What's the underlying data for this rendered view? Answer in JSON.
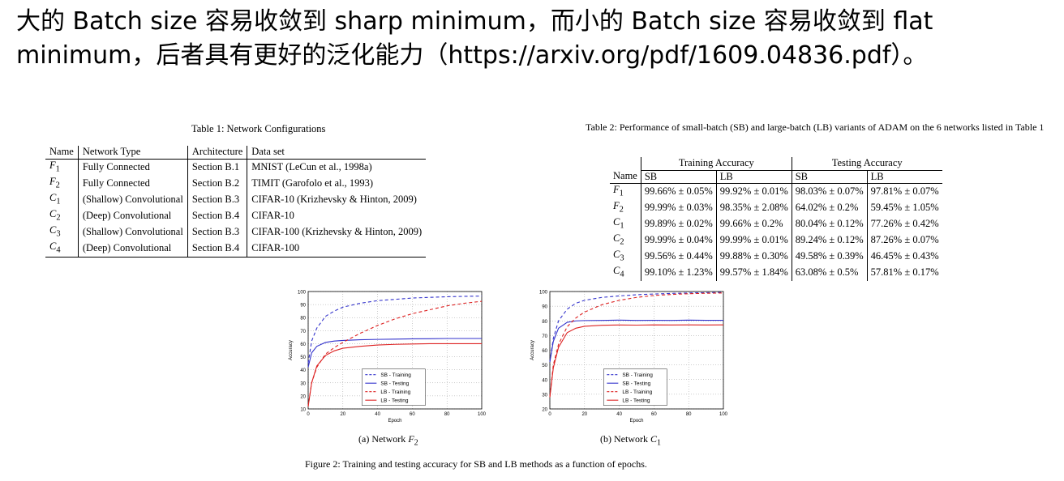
{
  "headline": {
    "line1": "大的 Batch size 容易收敛到 sharp minimum，而小的 Batch size 容易收敛到 flat",
    "line2": "minimum，后者具有更好的泛化能力（https://arxiv.org/pdf/1609.04836.pdf）。"
  },
  "table1": {
    "caption": "Table 1: Network Configurations",
    "headers": [
      "Name",
      "Network Type",
      "Architecture",
      "Data set"
    ],
    "rows": [
      [
        "F1",
        "Fully Connected",
        "Section B.1",
        "MNIST (LeCun et al., 1998a)"
      ],
      [
        "F2",
        "Fully Connected",
        "Section B.2",
        "TIMIT (Garofolo et al., 1993)"
      ],
      [
        "C1",
        "(Shallow) Convolutional",
        "Section B.3",
        "CIFAR-10 (Krizhevsky & Hinton, 2009)"
      ],
      [
        "C2",
        "(Deep) Convolutional",
        "Section B.4",
        "CIFAR-10"
      ],
      [
        "C3",
        "(Shallow) Convolutional",
        "Section B.3",
        "CIFAR-100 (Krizhevsky & Hinton, 2009)"
      ],
      [
        "C4",
        "(Deep) Convolutional",
        "Section B.4",
        "CIFAR-100"
      ]
    ]
  },
  "table2": {
    "caption": "Table 2: Performance of small-batch (SB) and large-batch (LB) variants of ADAM on the 6 networks listed in Table 1",
    "group_training": "Training Accuracy",
    "group_testing": "Testing Accuracy",
    "col_name": "Name",
    "col_sb": "SB",
    "col_lb": "LB",
    "rows": [
      [
        "F1",
        "99.66% ± 0.05%",
        "99.92% ± 0.01%",
        "98.03% ± 0.07%",
        "97.81% ± 0.07%"
      ],
      [
        "F2",
        "99.99% ± 0.03%",
        "98.35% ± 2.08%",
        "64.02% ± 0.2%",
        "59.45% ± 1.05%"
      ],
      [
        "C1",
        "99.89% ± 0.02%",
        "99.66% ± 0.2%",
        "80.04% ± 0.12%",
        "77.26% ± 0.42%"
      ],
      [
        "C2",
        "99.99% ± 0.04%",
        "99.99% ± 0.01%",
        "89.24% ± 0.12%",
        "87.26% ± 0.07%"
      ],
      [
        "C3",
        "99.56% ± 0.44%",
        "99.88% ± 0.30%",
        "49.58% ± 0.39%",
        "46.45% ± 0.43%"
      ],
      [
        "C4",
        "99.10% ± 1.23%",
        "99.57% ± 1.84%",
        "63.08% ± 0.5%",
        "57.81% ± 0.17%"
      ]
    ]
  },
  "figure": {
    "caption": "Figure 2: Training and testing accuracy for SB and LB methods as a function of epochs.",
    "subcaption_a": "(a) Network ",
    "subcaption_a_math": "F",
    "subcaption_a_sub": "2",
    "subcaption_b": "(b) Network ",
    "subcaption_b_math": "C",
    "subcaption_b_sub": "1"
  },
  "chart_data": [
    {
      "type": "line",
      "xlabel": "Epoch",
      "ylabel": "Accuracy",
      "xlim": [
        0,
        100
      ],
      "ylim": [
        10,
        100
      ],
      "xticks": [
        0,
        20,
        40,
        60,
        80,
        100
      ],
      "yticks": [
        10,
        20,
        30,
        40,
        50,
        60,
        70,
        80,
        90,
        100
      ],
      "grid": true,
      "legend_position": "lower-center",
      "series": [
        {
          "name": "SB - Training",
          "color": "#3333cc",
          "dash": true,
          "x": [
            0,
            2,
            5,
            10,
            15,
            20,
            30,
            40,
            50,
            60,
            70,
            80,
            90,
            100
          ],
          "y": [
            45,
            62,
            72,
            81,
            85,
            88,
            91,
            93,
            94,
            95,
            95.5,
            96,
            96.3,
            96.5
          ]
        },
        {
          "name": "SB - Testing",
          "color": "#3333cc",
          "dash": false,
          "x": [
            0,
            2,
            5,
            10,
            15,
            20,
            30,
            40,
            50,
            60,
            70,
            80,
            90,
            100
          ],
          "y": [
            42,
            53,
            58,
            61,
            62,
            62.5,
            63,
            63.3,
            63.5,
            63.7,
            63.8,
            64,
            64,
            64
          ]
        },
        {
          "name": "LB - Training",
          "color": "#dd2222",
          "dash": true,
          "x": [
            0,
            2,
            5,
            10,
            15,
            20,
            30,
            40,
            50,
            60,
            70,
            80,
            90,
            100
          ],
          "y": [
            12,
            30,
            42,
            52,
            57,
            61,
            68,
            74,
            79,
            83,
            86,
            89,
            91,
            92.5
          ]
        },
        {
          "name": "LB - Testing",
          "color": "#dd2222",
          "dash": false,
          "x": [
            0,
            2,
            5,
            10,
            15,
            20,
            30,
            40,
            50,
            60,
            70,
            80,
            90,
            100
          ],
          "y": [
            12,
            30,
            43,
            51,
            54.5,
            56.5,
            58,
            59,
            59.5,
            59.8,
            60,
            60,
            60,
            60
          ]
        }
      ]
    },
    {
      "type": "line",
      "xlabel": "Epoch",
      "ylabel": "Accuracy",
      "xlim": [
        0,
        100
      ],
      "ylim": [
        20,
        100
      ],
      "xticks": [
        0,
        20,
        40,
        60,
        80,
        100
      ],
      "yticks": [
        20,
        30,
        40,
        50,
        60,
        70,
        80,
        90,
        100
      ],
      "grid": true,
      "legend_position": "lower-center",
      "series": [
        {
          "name": "SB - Training",
          "color": "#3333cc",
          "dash": true,
          "x": [
            0,
            2,
            5,
            10,
            15,
            20,
            30,
            40,
            50,
            60,
            70,
            80,
            90,
            100
          ],
          "y": [
            52,
            68,
            80,
            88,
            92,
            94,
            96,
            97,
            97.8,
            98.3,
            98.7,
            99,
            99.2,
            99.4
          ]
        },
        {
          "name": "SB - Testing",
          "color": "#3333cc",
          "dash": false,
          "x": [
            0,
            2,
            5,
            10,
            15,
            20,
            30,
            40,
            50,
            60,
            70,
            80,
            90,
            100
          ],
          "y": [
            52,
            66,
            75,
            79,
            80,
            80.2,
            80.3,
            80.5,
            80.3,
            80.4,
            80.3,
            80.5,
            80.4,
            80.4
          ]
        },
        {
          "name": "LB - Training",
          "color": "#dd2222",
          "dash": true,
          "x": [
            0,
            2,
            5,
            10,
            15,
            20,
            30,
            40,
            50,
            60,
            70,
            80,
            90,
            100
          ],
          "y": [
            28,
            50,
            64,
            76,
            82,
            86,
            91,
            94,
            96,
            97.3,
            98,
            98.5,
            98.8,
            99
          ]
        },
        {
          "name": "LB - Testing",
          "color": "#dd2222",
          "dash": false,
          "x": [
            0,
            2,
            5,
            10,
            15,
            20,
            30,
            40,
            50,
            60,
            70,
            80,
            90,
            100
          ],
          "y": [
            28,
            48,
            62,
            72,
            75,
            76.3,
            77,
            77.2,
            77.1,
            77.3,
            77.2,
            77.3,
            77.2,
            77.3
          ]
        }
      ]
    }
  ]
}
